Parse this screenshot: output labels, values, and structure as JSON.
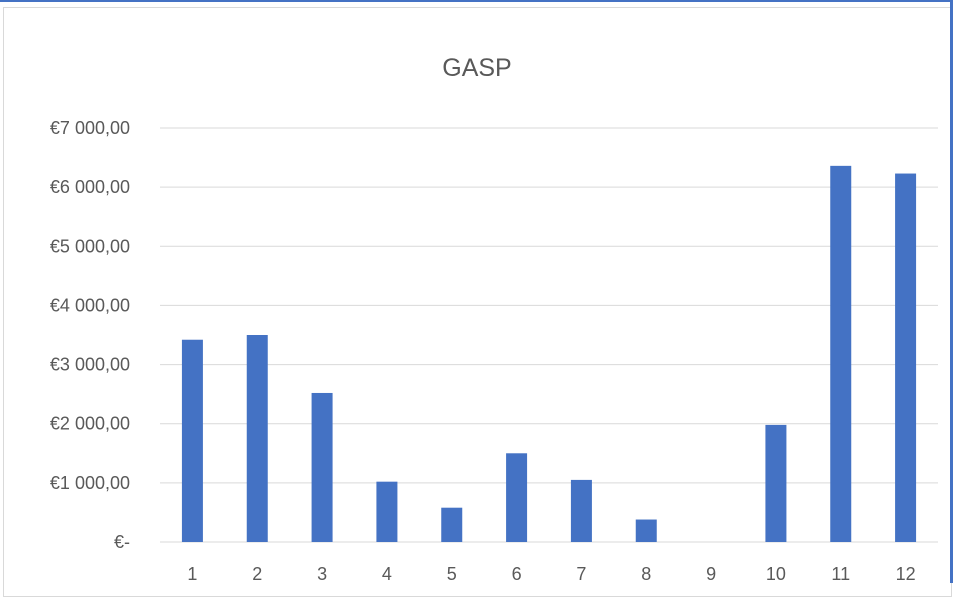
{
  "chart_data": {
    "type": "bar",
    "title": "GASP",
    "xlabel": "",
    "ylabel": "",
    "categories": [
      "1",
      "2",
      "3",
      "4",
      "5",
      "6",
      "7",
      "8",
      "9",
      "10",
      "11",
      "12"
    ],
    "values": [
      3420,
      3500,
      2520,
      1020,
      580,
      1500,
      1050,
      380,
      0,
      1980,
      6360,
      6230
    ],
    "ylim": [
      0,
      7000
    ],
    "y_ticks": [
      {
        "value": 0,
        "label": "€-"
      },
      {
        "value": 1000,
        "label": "€1 000,00"
      },
      {
        "value": 2000,
        "label": "€2 000,00"
      },
      {
        "value": 3000,
        "label": "€3 000,00"
      },
      {
        "value": 4000,
        "label": "€4 000,00"
      },
      {
        "value": 5000,
        "label": "€5 000,00"
      },
      {
        "value": 6000,
        "label": "€6 000,00"
      },
      {
        "value": 7000,
        "label": "€7 000,00"
      }
    ],
    "grid": true,
    "legend": "none",
    "colors": {
      "bar": "#4472c4",
      "grid": "#d9d9d9",
      "text": "#595959",
      "accent": "#4472c4"
    }
  }
}
